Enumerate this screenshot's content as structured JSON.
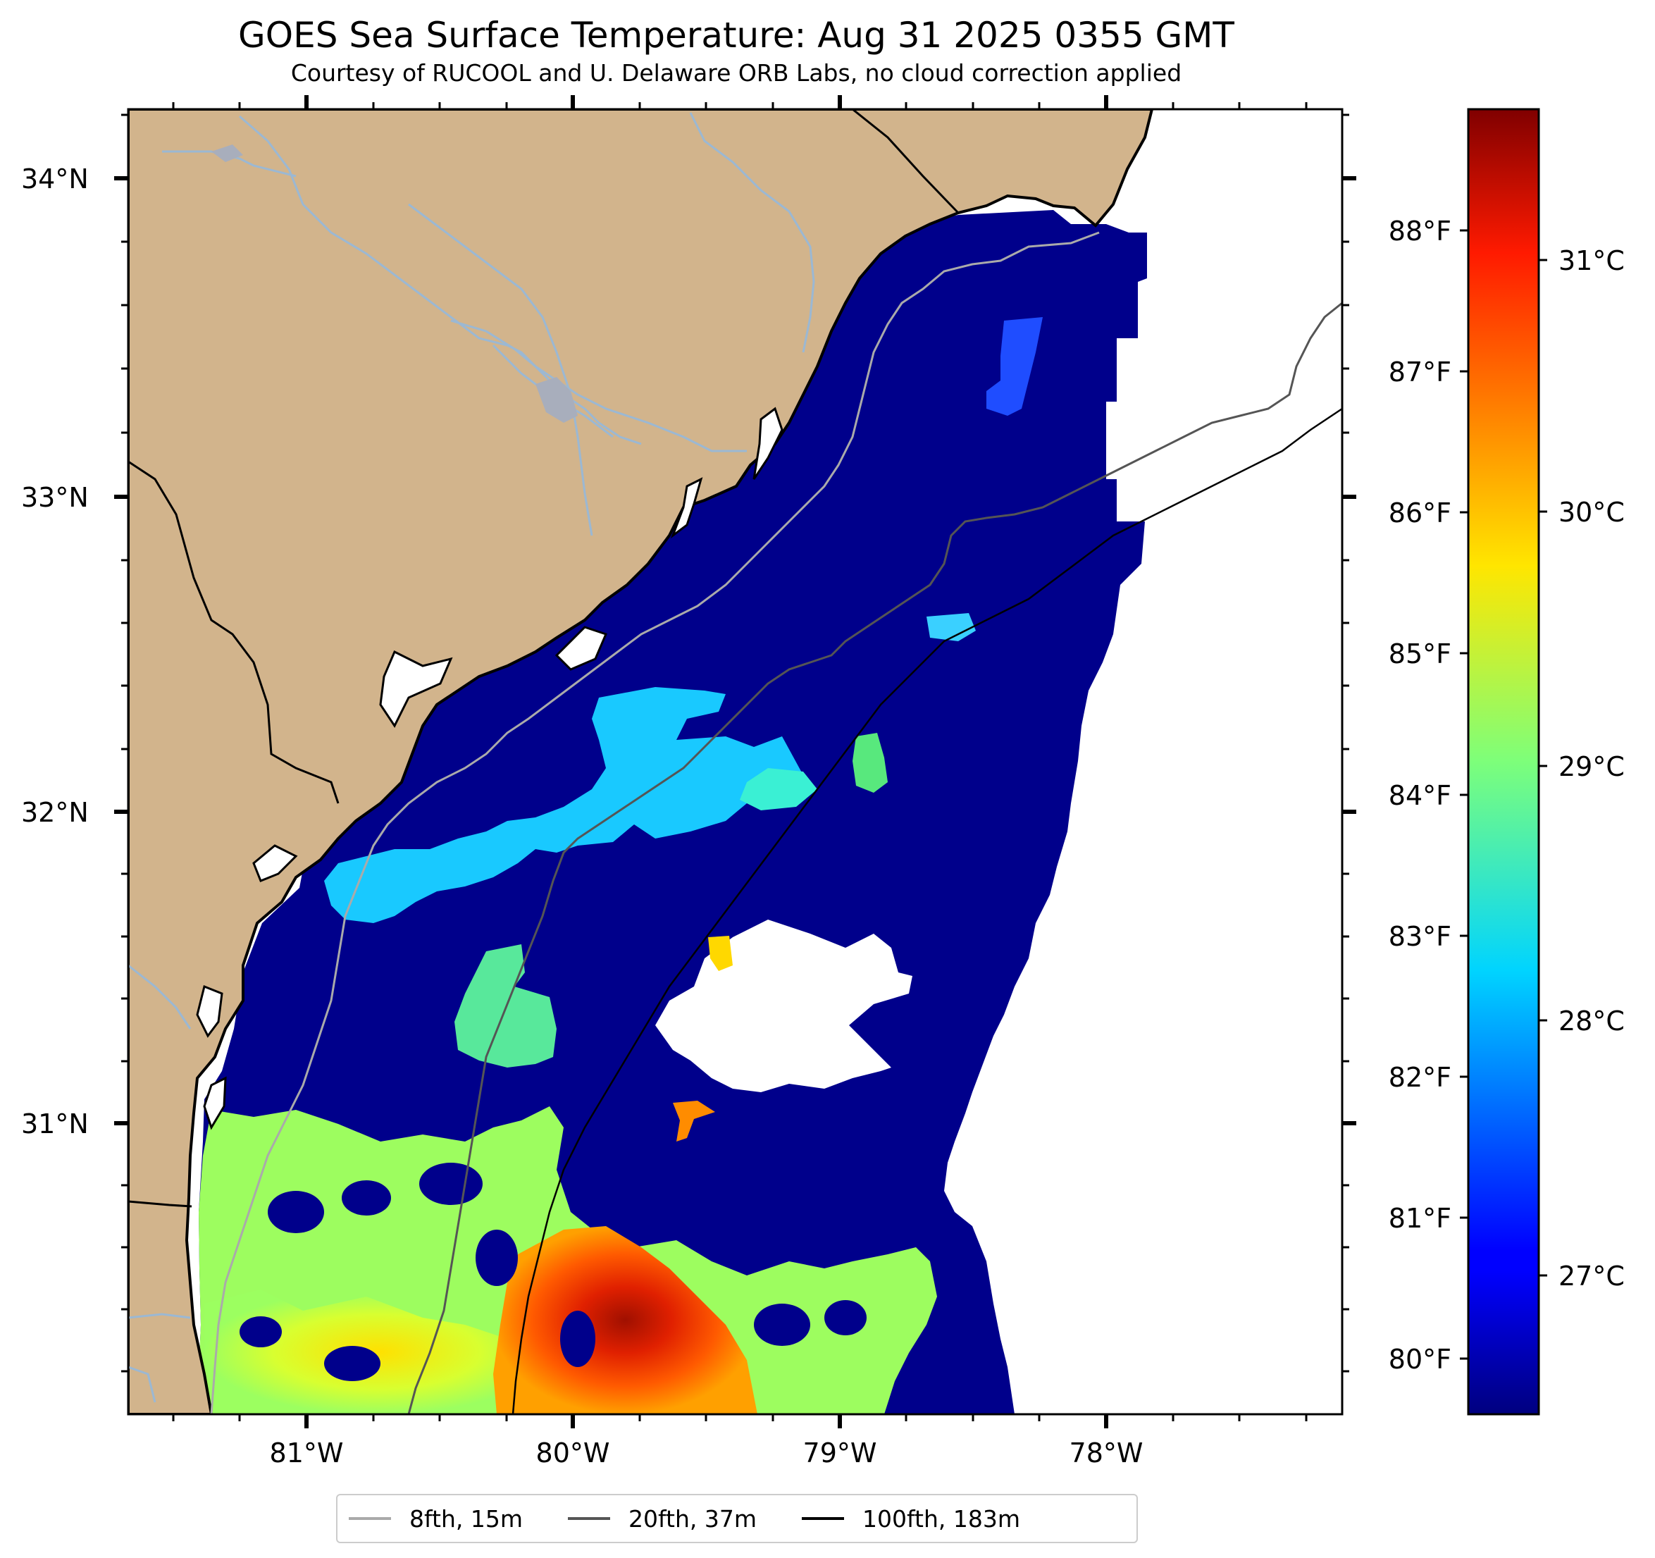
{
  "header": {
    "title": "GOES Sea Surface Temperature: Aug 31 2025 0355 GMT",
    "subtitle": "Courtesy of RUCOOL and U. Delaware ORB Labs, no cloud correction applied"
  },
  "map": {
    "lat_labels": [
      "34°N",
      "33°N",
      "32°N",
      "31°N"
    ],
    "lon_labels": [
      "81°W",
      "80°W",
      "79°W",
      "78°W"
    ],
    "colors": {
      "land": "#d2b48c",
      "cold_water": "#00008b",
      "no_data": "#ffffff",
      "rivers": "#9bb8d3"
    }
  },
  "colorbar": {
    "celsius_labels": [
      "31°C",
      "30°C",
      "29°C",
      "28°C",
      "27°C"
    ],
    "fahrenheit_labels": [
      "88°F",
      "87°F",
      "86°F",
      "85°F",
      "84°F",
      "83°F",
      "82°F",
      "81°F",
      "80°F"
    ]
  },
  "legend": {
    "items": [
      {
        "label": "8fth, 15m",
        "color": "#aaaaaa"
      },
      {
        "label": "20fth, 37m",
        "color": "#555555"
      },
      {
        "label": "100fth, 183m",
        "color": "#000000"
      }
    ]
  }
}
